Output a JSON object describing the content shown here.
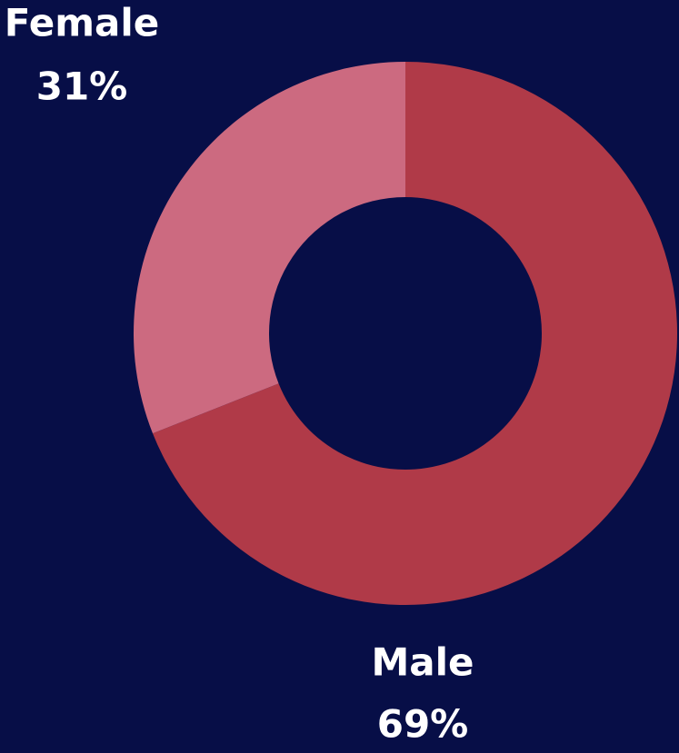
{
  "chart_data": {
    "type": "donut",
    "categories": [
      "Male",
      "Female"
    ],
    "values": [
      69,
      31
    ],
    "value_labels": [
      "69%",
      "31%"
    ],
    "colors": [
      "#b03a48",
      "#cc6a80"
    ]
  }
}
